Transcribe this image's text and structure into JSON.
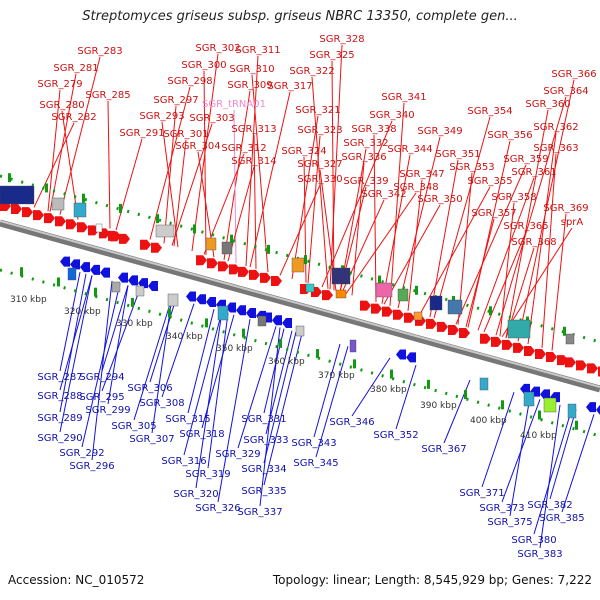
{
  "title": "Streptomyces griseus subsp. griseus NBRC 13350, complete gen...",
  "footer": {
    "accession": "Accession: NC_010572",
    "topology": "Topology: linear; Length: 8,545,929 bp; Genes: 7,222"
  },
  "colors": {
    "forward": "#ee1111",
    "reverse": "#1111dd",
    "rna": "#ee88cc",
    "axis": "#999999",
    "ticks": "#119911"
  },
  "ruler_labels": [
    "310 kbp",
    "320 kbp",
    "330 kbp",
    "340 kbp",
    "350 kbp",
    "360 kbp",
    "370 kbp",
    "380 kbp",
    "390 kbp",
    "400 kbp",
    "410 kbp"
  ],
  "top_labels": [
    [
      "SGR_283",
      100,
      54
    ],
    [
      "SGR_281",
      76,
      71
    ],
    [
      "SGR_279",
      60,
      87
    ],
    [
      "SGR_285",
      108,
      98
    ],
    [
      "SGR_280",
      62,
      108
    ],
    [
      "SGR_282",
      74,
      120
    ],
    [
      "SGR_302",
      218,
      51
    ],
    [
      "SGR_311",
      258,
      53
    ],
    [
      "SGR_300",
      204,
      68
    ],
    [
      "SGR_310",
      252,
      72
    ],
    [
      "SGR_298",
      190,
      84
    ],
    [
      "SGR_309",
      250,
      88
    ],
    [
      "SGR_297",
      176,
      103
    ],
    [
      "SGR_tRNA01",
      234,
      107
    ],
    [
      "SGR_293",
      162,
      119
    ],
    [
      "SGR_303",
      212,
      121
    ],
    [
      "SGR_291",
      142,
      136
    ],
    [
      "SGR_301",
      186,
      137
    ],
    [
      "SGR_313",
      254,
      132
    ],
    [
      "SGR_304",
      198,
      149
    ],
    [
      "SGR_312",
      244,
      151
    ],
    [
      "SGR_314",
      254,
      164
    ],
    [
      "SGR_328",
      342,
      42
    ],
    [
      "SGR_325",
      332,
      58
    ],
    [
      "SGR_322",
      312,
      74
    ],
    [
      "SGR_317",
      290,
      89
    ],
    [
      "SGR_321",
      318,
      113
    ],
    [
      "SGR_323",
      320,
      133
    ],
    [
      "SGR_324",
      304,
      154
    ],
    [
      "SGR_327",
      320,
      167
    ],
    [
      "SGR_330",
      320,
      182
    ],
    [
      "SGR_332",
      366,
      146
    ],
    [
      "SGR_336",
      364,
      160
    ],
    [
      "SGR_338",
      374,
      132
    ],
    [
      "SGR_341",
      404,
      100
    ],
    [
      "SGR_340",
      392,
      118
    ],
    [
      "SGR_339",
      366,
      184
    ],
    [
      "SGR_342",
      384,
      197
    ],
    [
      "SGR_344",
      410,
      152
    ],
    [
      "SGR_347",
      422,
      177
    ],
    [
      "SGR_348",
      416,
      190
    ],
    [
      "SGR_350",
      440,
      202
    ],
    [
      "SGR_349",
      440,
      134
    ],
    [
      "SGR_351",
      458,
      157
    ],
    [
      "SGR_353",
      472,
      170
    ],
    [
      "SGR_355",
      490,
      184
    ],
    [
      "SGR_354",
      490,
      114
    ],
    [
      "SGR_356",
      510,
      138
    ],
    [
      "SGR_357",
      494,
      216
    ],
    [
      "SGR_358",
      514,
      200
    ],
    [
      "SGR_359",
      526,
      162
    ],
    [
      "SGR_361",
      534,
      175
    ],
    [
      "SGR_360",
      548,
      107
    ],
    [
      "SGR_362",
      556,
      130
    ],
    [
      "SGR_363",
      556,
      151
    ],
    [
      "SGR_364",
      566,
      94
    ],
    [
      "SGR_366",
      574,
      77
    ],
    [
      "SGR_365",
      526,
      229
    ],
    [
      "SGR_368",
      534,
      245
    ],
    [
      "SGR_369",
      566,
      211
    ],
    [
      "sprA",
      572,
      225
    ]
  ],
  "bottom_labels": [
    [
      "SGR_287",
      60,
      380
    ],
    [
      "SGR_294",
      102,
      380
    ],
    [
      "SGR_288",
      60,
      399
    ],
    [
      "SGR_295",
      102,
      400
    ],
    [
      "SGR_299",
      108,
      413
    ],
    [
      "SGR_289",
      60,
      421
    ],
    [
      "SGR_290",
      60,
      441
    ],
    [
      "SGR_292",
      82,
      456
    ],
    [
      "SGR_296",
      92,
      469
    ],
    [
      "SGR_306",
      150,
      391
    ],
    [
      "SGR_308",
      162,
      406
    ],
    [
      "SGR_305",
      134,
      429
    ],
    [
      "SGR_307",
      152,
      442
    ],
    [
      "SGR_315",
      188,
      422
    ],
    [
      "SGR_318",
      202,
      437
    ],
    [
      "SGR_316",
      184,
      464
    ],
    [
      "SGR_319",
      208,
      477
    ],
    [
      "SGR_320",
      196,
      497
    ],
    [
      "SGR_326",
      218,
      511
    ],
    [
      "SGR_329",
      238,
      457
    ],
    [
      "SGR_331",
      264,
      422
    ],
    [
      "SGR_333",
      266,
      443
    ],
    [
      "SGR_334",
      264,
      472
    ],
    [
      "SGR_335",
      264,
      494
    ],
    [
      "SGR_337",
      260,
      515
    ],
    [
      "SGR_343",
      314,
      446
    ],
    [
      "SGR_345",
      316,
      466
    ],
    [
      "SGR_346",
      352,
      425
    ],
    [
      "SGR_352",
      396,
      438
    ],
    [
      "SGR_367",
      444,
      452
    ],
    [
      "SGR_371",
      482,
      496
    ],
    [
      "SGR_373",
      502,
      511
    ],
    [
      "SGR_375",
      510,
      525
    ],
    [
      "SGR_382",
      550,
      508
    ],
    [
      "SGR_385",
      562,
      521
    ],
    [
      "SGR_380",
      534,
      543
    ],
    [
      "SGR_383",
      540,
      557
    ]
  ]
}
